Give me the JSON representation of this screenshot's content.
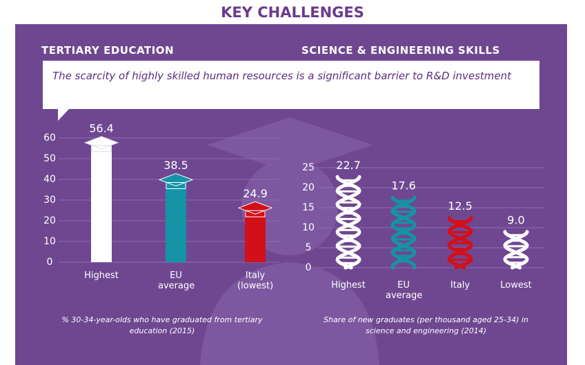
{
  "header": {
    "title": "KEY CHALLENGES"
  },
  "callout": "The scarcity of highly skilled human resources is a significant barrier to R&D investment",
  "chart_data": [
    {
      "type": "bar",
      "title": "TERTIARY EDUCATION",
      "categories": [
        "Highest",
        "EU average",
        "Italy (lowest)"
      ],
      "values": [
        56.4,
        38.5,
        24.9
      ],
      "colors": [
        "#ffffff",
        "#1593a6",
        "#d2101a"
      ],
      "ylim": [
        0,
        60
      ],
      "yticks": [
        0,
        10,
        20,
        30,
        40,
        50,
        60
      ],
      "grid": true,
      "caption": "% 30-34-year-olds who have graduated from tertiary education (2015)"
    },
    {
      "type": "dna",
      "title": "SCIENCE & ENGINEERING SKILLS",
      "categories": [
        "Highest",
        "EU average",
        "Italy",
        "Lowest"
      ],
      "values": [
        22.7,
        17.6,
        12.5,
        9.0
      ],
      "value_labels": [
        "22.7",
        "17.6",
        "12.5",
        "9.0"
      ],
      "colors": [
        "#ffffff",
        "#1593a6",
        "#d2101a",
        "#ffffff"
      ],
      "ylim": [
        0,
        25
      ],
      "yticks": [
        0,
        5,
        10,
        15,
        20,
        25
      ],
      "grid": true,
      "caption": "Share of new graduates (per thousand aged 25-34) in science and engineering (2014)"
    }
  ]
}
